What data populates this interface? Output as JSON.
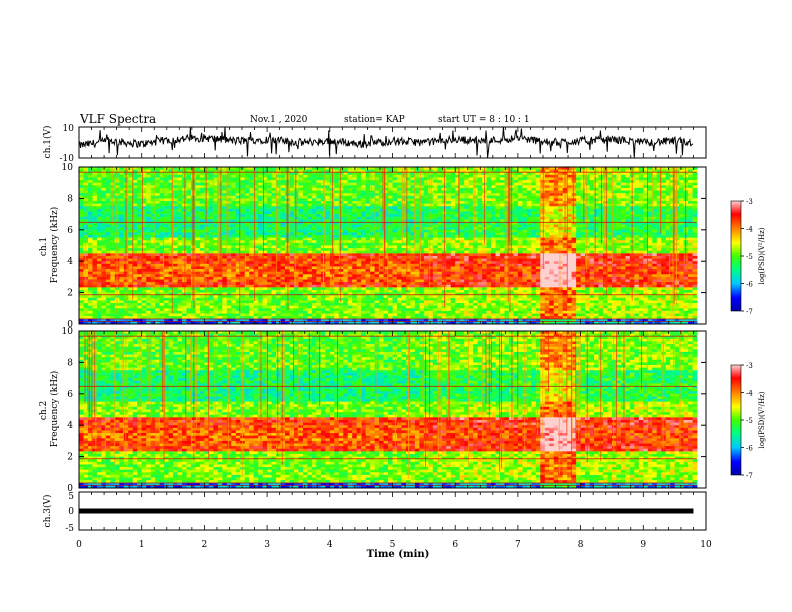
{
  "header": {
    "title": "VLF Spectra",
    "date": "Nov.1 , 2020",
    "station": "station= KAP",
    "start": "start UT = 8 : 10 : 1"
  },
  "chart_data": [
    {
      "type": "line",
      "panel": "ch1-waveform",
      "ylabel": "ch.1(V)",
      "ylim": [
        -10,
        10
      ],
      "yticks": [
        "10",
        "-10"
      ],
      "xlim": [
        0,
        10
      ],
      "x": [
        0,
        0.5,
        1,
        1.5,
        2,
        2.5,
        3,
        3.5,
        4,
        4.5,
        5,
        5.5,
        6,
        6.5,
        7,
        7.5,
        8,
        8.5,
        9,
        9.5,
        9.8
      ],
      "values": [
        -2,
        1,
        -1,
        2,
        3,
        1,
        2,
        0,
        1,
        -1,
        1,
        0,
        2,
        1,
        3,
        0,
        1,
        2,
        0,
        1,
        0
      ]
    },
    {
      "type": "heatmap",
      "panel": "ch1-spectrogram",
      "ylabel": "ch.1 Frequency (kHz)",
      "ylim": [
        0,
        10
      ],
      "yticks": [
        "0",
        "2",
        "4",
        "6",
        "8",
        "10"
      ],
      "xlim": [
        0,
        10
      ],
      "colorbar": {
        "label": "log(PSD)(V²/Hz)",
        "range": [
          -7,
          -3
        ],
        "ticks": [
          "-3",
          "-4",
          "-5",
          "-6",
          "-7"
        ],
        "colors": [
          "#0000aa",
          "#0000ff",
          "#00c8ff",
          "#00ff80",
          "#40ff00",
          "#ffff00",
          "#ff8000",
          "#ff0000",
          "#ffd0d0"
        ]
      },
      "features": [
        {
          "name": "strong band",
          "freq_khz": [
            2.4,
            4.4
          ],
          "log_psd": -3.5
        },
        {
          "name": "burst",
          "time_min": [
            7.35,
            7.95
          ],
          "log_psd": -3.8
        }
      ]
    },
    {
      "type": "heatmap",
      "panel": "ch2-spectrogram",
      "ylabel": "ch.2 Frequency (kHz)",
      "ylim": [
        0,
        10
      ],
      "yticks": [
        "0",
        "2",
        "4",
        "6",
        "8",
        "10"
      ],
      "xlim": [
        0,
        10
      ],
      "colorbar": {
        "label": "log(PSD)(V²/Hz)",
        "range": [
          -7,
          -3
        ],
        "ticks": [
          "-3",
          "-4",
          "-5",
          "-6",
          "-7"
        ],
        "colors": [
          "#0000aa",
          "#0000ff",
          "#00c8ff",
          "#00ff80",
          "#40ff00",
          "#ffff00",
          "#ff8000",
          "#ff0000",
          "#ffd0d0"
        ]
      },
      "features": [
        {
          "name": "strong band",
          "freq_khz": [
            2.5,
            4.5
          ],
          "log_psd": -3.5
        },
        {
          "name": "burst",
          "time_min": [
            7.35,
            7.95
          ],
          "log_psd": -3.8
        }
      ]
    },
    {
      "type": "line",
      "panel": "ch3-waveform",
      "ylabel": "ch.3(V)",
      "ylim": [
        -5,
        5
      ],
      "yticks": [
        "5",
        "0",
        "-5"
      ],
      "xlim": [
        0,
        10
      ],
      "x": [
        0,
        9.8
      ],
      "values": [
        0,
        0
      ]
    }
  ],
  "xaxis": {
    "label": "Time (min)",
    "ticks": [
      "0",
      "1",
      "2",
      "3",
      "4",
      "5",
      "6",
      "7",
      "8",
      "9",
      "10"
    ]
  }
}
